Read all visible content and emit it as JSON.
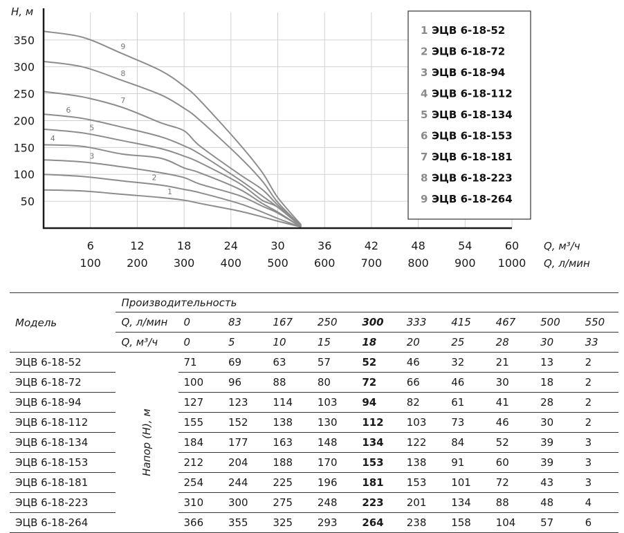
{
  "chart_data": {
    "type": "line",
    "x_flow_m3h": [
      0,
      5,
      10,
      15,
      18,
      20,
      25,
      28,
      30,
      33
    ],
    "series": [
      {
        "name": "ЭЦВ 6-18-52",
        "label": "1",
        "values": [
          71,
          69,
          63,
          57,
          52,
          46,
          32,
          21,
          13,
          2
        ]
      },
      {
        "name": "ЭЦВ 6-18-72",
        "label": "2",
        "values": [
          100,
          96,
          88,
          80,
          72,
          66,
          46,
          30,
          18,
          2
        ]
      },
      {
        "name": "ЭЦВ 6-18-94",
        "label": "3",
        "values": [
          127,
          123,
          114,
          103,
          94,
          82,
          61,
          41,
          28,
          2
        ]
      },
      {
        "name": "ЭЦВ 6-18-112",
        "label": "4",
        "values": [
          155,
          152,
          138,
          130,
          112,
          103,
          73,
          46,
          30,
          2
        ]
      },
      {
        "name": "ЭЦВ 6-18-134",
        "label": "5",
        "values": [
          184,
          177,
          163,
          148,
          134,
          122,
          84,
          52,
          39,
          3
        ]
      },
      {
        "name": "ЭЦВ 6-18-153",
        "label": "6",
        "values": [
          212,
          204,
          188,
          170,
          153,
          138,
          91,
          60,
          39,
          3
        ]
      },
      {
        "name": "ЭЦВ 6-18-181",
        "label": "7",
        "values": [
          254,
          244,
          225,
          196,
          181,
          153,
          101,
          72,
          43,
          3
        ]
      },
      {
        "name": "ЭЦВ 6-18-223",
        "label": "8",
        "values": [
          310,
          300,
          275,
          248,
          223,
          201,
          134,
          88,
          48,
          4
        ]
      },
      {
        "name": "ЭЦВ 6-18-264",
        "label": "9",
        "values": [
          366,
          355,
          325,
          293,
          264,
          238,
          158,
          104,
          57,
          6
        ]
      }
    ],
    "xlim": [
      0,
      60
    ],
    "ylim": [
      0,
      380
    ],
    "x_ticks_m3h": [
      "6",
      "12",
      "18",
      "24",
      "30",
      "36",
      "42",
      "48",
      "54",
      "60"
    ],
    "x_ticks_lmin": [
      "100",
      "200",
      "300",
      "400",
      "500",
      "600",
      "700",
      "800",
      "900",
      "1000"
    ],
    "y_ticks": [
      "50",
      "100",
      "150",
      "200",
      "250",
      "300",
      "350"
    ],
    "ylabel": "H, м",
    "xlabel_m3h": "Q, м³/ч",
    "xlabel_lmin": "Q, л/мин",
    "legend_position": "top-right",
    "grid": true
  },
  "table": {
    "model_header": "Модель",
    "perf_header": "Производительность",
    "row_q_lmin_label": "Q, л/мин",
    "row_q_m3h_label": "Q, м³/ч",
    "head_label": "Напор (H), м",
    "q_lmin": [
      "0",
      "83",
      "167",
      "250",
      "300",
      "333",
      "415",
      "467",
      "500",
      "550"
    ],
    "q_m3h": [
      "0",
      "5",
      "10",
      "15",
      "18",
      "20",
      "25",
      "28",
      "30",
      "33"
    ],
    "highlight_col": 4,
    "rows": [
      {
        "model": "ЭЦВ 6-18-52",
        "values": [
          "71",
          "69",
          "63",
          "57",
          "52",
          "46",
          "32",
          "21",
          "13",
          "2"
        ]
      },
      {
        "model": "ЭЦВ 6-18-72",
        "values": [
          "100",
          "96",
          "88",
          "80",
          "72",
          "66",
          "46",
          "30",
          "18",
          "2"
        ]
      },
      {
        "model": "ЭЦВ 6-18-94",
        "values": [
          "127",
          "123",
          "114",
          "103",
          "94",
          "82",
          "61",
          "41",
          "28",
          "2"
        ]
      },
      {
        "model": "ЭЦВ 6-18-112",
        "values": [
          "155",
          "152",
          "138",
          "130",
          "112",
          "103",
          "73",
          "46",
          "30",
          "2"
        ]
      },
      {
        "model": "ЭЦВ 6-18-134",
        "values": [
          "184",
          "177",
          "163",
          "148",
          "134",
          "122",
          "84",
          "52",
          "39",
          "3"
        ]
      },
      {
        "model": "ЭЦВ 6-18-153",
        "values": [
          "212",
          "204",
          "188",
          "170",
          "153",
          "138",
          "91",
          "60",
          "39",
          "3"
        ]
      },
      {
        "model": "ЭЦВ 6-18-181",
        "values": [
          "254",
          "244",
          "225",
          "196",
          "181",
          "153",
          "101",
          "72",
          "43",
          "3"
        ]
      },
      {
        "model": "ЭЦВ 6-18-223",
        "values": [
          "310",
          "300",
          "275",
          "248",
          "223",
          "201",
          "134",
          "88",
          "48",
          "4"
        ]
      },
      {
        "model": "ЭЦВ 6-18-264",
        "values": [
          "366",
          "355",
          "325",
          "293",
          "264",
          "238",
          "158",
          "104",
          "57",
          "6"
        ]
      }
    ]
  },
  "colors": {
    "curve": "#8c8c8c",
    "grid": "#d0d0d0",
    "axis": "#1a1a1a",
    "legend_num": "#8a8a8a"
  }
}
